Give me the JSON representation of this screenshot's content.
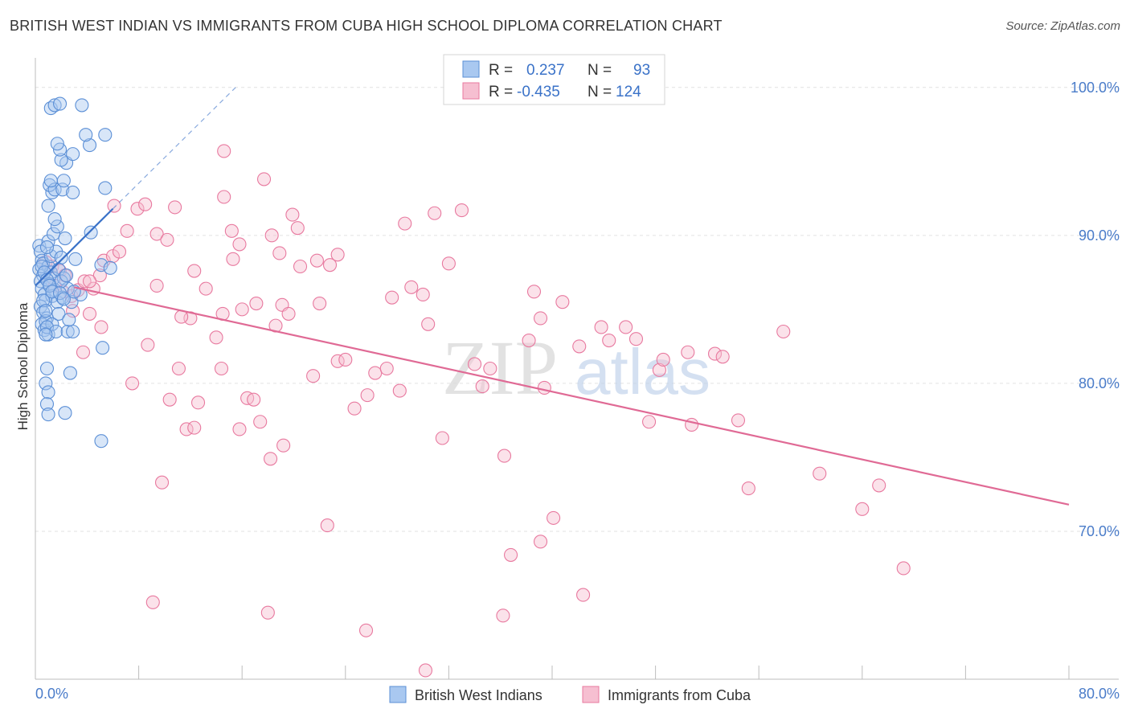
{
  "chart_data": {
    "type": "scatter",
    "title": "BRITISH WEST INDIAN VS IMMIGRANTS FROM CUBA HIGH SCHOOL DIPLOMA CORRELATION CHART",
    "source": "Source: ZipAtlas.com",
    "ylabel": "High School Diploma",
    "xlabel": "",
    "xlim": [
      0,
      80
    ],
    "ylim": [
      60,
      102
    ],
    "x_tick_labels": [
      {
        "value": 0,
        "label": "0.0%"
      },
      {
        "value": 80,
        "label": "80.0%"
      }
    ],
    "y_tick_labels": [
      {
        "value": 100,
        "label": "100.0%"
      },
      {
        "value": 90,
        "label": "90.0%"
      },
      {
        "value": 80,
        "label": "80.0%"
      },
      {
        "value": 70,
        "label": "70.0%"
      }
    ],
    "watermark": {
      "zip": "ZIP",
      "atlas": "atlas"
    },
    "legend": {
      "rows": [
        {
          "r_label": "R =",
          "r_value": "0.237",
          "n_label": "N =",
          "n_value": "93"
        },
        {
          "r_label": "R =",
          "r_value": "-0.435",
          "n_label": "N =",
          "n_value": "124"
        }
      ]
    },
    "colors": {
      "blue_fill": "#a9c8f0",
      "blue_stroke": "#5b8fd6",
      "blue_line": "#3a72c8",
      "pink_fill": "#f6bfd1",
      "pink_stroke": "#e8799f",
      "pink_line": "#e06a95",
      "grid": "#e2e2e2",
      "tick_text": "#4a7cc9"
    },
    "series": [
      {
        "name": "British West Indians",
        "r": 0.237,
        "n": 93,
        "trend": {
          "x1": 0.0,
          "y1": 86.6,
          "x2": 6.0,
          "y2": 91.8,
          "dash_x2": 15.5,
          "dash_y2": 100.0
        },
        "points": [
          [
            0.3,
            89.3
          ],
          [
            0.4,
            88.9
          ],
          [
            0.5,
            88.3
          ],
          [
            0.3,
            87.7
          ],
          [
            0.6,
            87.3
          ],
          [
            0.4,
            86.9
          ],
          [
            0.5,
            86.4
          ],
          [
            0.7,
            86.0
          ],
          [
            0.8,
            85.6
          ],
          [
            0.4,
            85.2
          ],
          [
            0.6,
            84.8
          ],
          [
            0.9,
            84.4
          ],
          [
            0.5,
            84.0
          ],
          [
            0.7,
            83.6
          ],
          [
            1.0,
            83.3
          ],
          [
            0.6,
            88.1
          ],
          [
            1.0,
            87.9
          ],
          [
            1.2,
            87.5
          ],
          [
            1.4,
            87.1
          ],
          [
            1.1,
            86.7
          ],
          [
            1.5,
            86.3
          ],
          [
            1.3,
            85.9
          ],
          [
            1.7,
            85.5
          ],
          [
            1.2,
            88.6
          ],
          [
            1.6,
            88.9
          ],
          [
            2.0,
            88.5
          ],
          [
            1.8,
            87.7
          ],
          [
            2.2,
            87.1
          ],
          [
            2.5,
            86.4
          ],
          [
            2.1,
            85.8
          ],
          [
            2.8,
            85.5
          ],
          [
            3.1,
            88.4
          ],
          [
            1.0,
            89.6
          ],
          [
            1.4,
            90.1
          ],
          [
            2.3,
            89.8
          ],
          [
            1.7,
            90.6
          ],
          [
            1.5,
            91.1
          ],
          [
            1.0,
            92.0
          ],
          [
            1.3,
            92.9
          ],
          [
            1.1,
            93.4
          ],
          [
            1.5,
            93.1
          ],
          [
            2.1,
            93.1
          ],
          [
            2.9,
            92.9
          ],
          [
            1.2,
            93.7
          ],
          [
            2.2,
            93.7
          ],
          [
            2.4,
            94.9
          ],
          [
            2.0,
            95.1
          ],
          [
            2.9,
            95.5
          ],
          [
            1.9,
            95.8
          ],
          [
            1.7,
            96.2
          ],
          [
            4.2,
            96.1
          ],
          [
            3.9,
            96.8
          ],
          [
            5.4,
            96.8
          ],
          [
            1.2,
            98.6
          ],
          [
            1.5,
            98.8
          ],
          [
            1.9,
            98.9
          ],
          [
            3.6,
            98.8
          ],
          [
            5.4,
            93.2
          ],
          [
            4.3,
            90.2
          ],
          [
            5.1,
            88.0
          ],
          [
            5.8,
            87.8
          ],
          [
            3.5,
            86.0
          ],
          [
            0.8,
            84.2
          ],
          [
            1.3,
            84.0
          ],
          [
            0.9,
            83.8
          ],
          [
            1.6,
            83.5
          ],
          [
            2.5,
            83.5
          ],
          [
            2.9,
            83.5
          ],
          [
            1.8,
            84.7
          ],
          [
            0.8,
            83.3
          ],
          [
            0.9,
            81.0
          ],
          [
            0.8,
            80.0
          ],
          [
            1.0,
            79.4
          ],
          [
            0.9,
            78.6
          ],
          [
            1.0,
            77.9
          ],
          [
            2.3,
            78.0
          ],
          [
            2.7,
            80.7
          ],
          [
            5.2,
            82.4
          ],
          [
            5.1,
            76.1
          ],
          [
            0.5,
            87.9
          ],
          [
            0.7,
            87.5
          ],
          [
            0.9,
            87.0
          ],
          [
            1.1,
            86.6
          ],
          [
            1.3,
            86.2
          ],
          [
            0.6,
            85.6
          ],
          [
            0.8,
            84.9
          ],
          [
            2.6,
            84.3
          ],
          [
            2.0,
            86.9
          ],
          [
            2.4,
            87.3
          ],
          [
            1.9,
            86.1
          ],
          [
            2.2,
            85.7
          ],
          [
            3.0,
            86.2
          ],
          [
            0.9,
            89.2
          ]
        ]
      },
      {
        "name": "Immigrants from Cuba",
        "r": -0.435,
        "n": 124,
        "trend": {
          "x1": 3.0,
          "y1": 86.5,
          "x2": 80.0,
          "y2": 71.8
        },
        "points": [
          [
            0.8,
            88.2
          ],
          [
            1.3,
            87.9
          ],
          [
            1.9,
            87.6
          ],
          [
            2.3,
            87.3
          ],
          [
            0.9,
            87.0
          ],
          [
            1.5,
            86.6
          ],
          [
            2.1,
            86.2
          ],
          [
            2.8,
            85.9
          ],
          [
            3.3,
            86.3
          ],
          [
            3.8,
            86.9
          ],
          [
            4.5,
            86.4
          ],
          [
            5.0,
            87.3
          ],
          [
            5.3,
            88.3
          ],
          [
            6.0,
            88.6
          ],
          [
            6.5,
            88.9
          ],
          [
            7.1,
            90.3
          ],
          [
            6.1,
            92.0
          ],
          [
            7.9,
            91.8
          ],
          [
            8.5,
            92.1
          ],
          [
            9.4,
            90.1
          ],
          [
            10.2,
            89.7
          ],
          [
            10.8,
            91.9
          ],
          [
            12.3,
            87.6
          ],
          [
            13.2,
            86.4
          ],
          [
            14.5,
            84.7
          ],
          [
            15.2,
            90.3
          ],
          [
            15.8,
            89.4
          ],
          [
            15.3,
            88.4
          ],
          [
            14.0,
            83.1
          ],
          [
            12.0,
            84.4
          ],
          [
            11.1,
            81.0
          ],
          [
            11.3,
            84.5
          ],
          [
            9.4,
            86.6
          ],
          [
            8.7,
            82.6
          ],
          [
            7.5,
            80.0
          ],
          [
            4.2,
            84.7
          ],
          [
            5.1,
            83.8
          ],
          [
            3.7,
            82.1
          ],
          [
            4.2,
            86.9
          ],
          [
            10.4,
            78.9
          ],
          [
            12.6,
            78.7
          ],
          [
            11.7,
            76.9
          ],
          [
            12.3,
            77.0
          ],
          [
            14.4,
            81.0
          ],
          [
            15.8,
            76.9
          ],
          [
            16.0,
            85.0
          ],
          [
            17.1,
            85.4
          ],
          [
            16.4,
            79.0
          ],
          [
            16.9,
            78.9
          ],
          [
            17.4,
            77.4
          ],
          [
            18.2,
            74.9
          ],
          [
            19.2,
            75.8
          ],
          [
            18.6,
            83.9
          ],
          [
            19.1,
            85.3
          ],
          [
            19.6,
            84.7
          ],
          [
            18.3,
            90.0
          ],
          [
            18.9,
            88.8
          ],
          [
            19.9,
            91.4
          ],
          [
            20.3,
            90.5
          ],
          [
            20.5,
            87.9
          ],
          [
            21.8,
            88.3
          ],
          [
            22.8,
            88.0
          ],
          [
            23.4,
            88.7
          ],
          [
            22.0,
            85.4
          ],
          [
            21.5,
            80.5
          ],
          [
            23.4,
            81.5
          ],
          [
            24.0,
            81.6
          ],
          [
            24.7,
            78.3
          ],
          [
            25.7,
            79.2
          ],
          [
            26.3,
            80.7
          ],
          [
            27.2,
            81.0
          ],
          [
            28.2,
            79.5
          ],
          [
            27.6,
            85.8
          ],
          [
            29.1,
            86.5
          ],
          [
            30.0,
            86.0
          ],
          [
            30.4,
            84.0
          ],
          [
            31.5,
            76.3
          ],
          [
            30.9,
            91.5
          ],
          [
            32.0,
            88.1
          ],
          [
            28.6,
            90.8
          ],
          [
            33.0,
            91.7
          ],
          [
            34.0,
            81.3
          ],
          [
            34.6,
            79.8
          ],
          [
            35.2,
            81.0
          ],
          [
            36.3,
            75.1
          ],
          [
            38.2,
            82.9
          ],
          [
            38.6,
            86.2
          ],
          [
            39.1,
            84.4
          ],
          [
            39.4,
            79.7
          ],
          [
            40.8,
            85.5
          ],
          [
            42.1,
            82.5
          ],
          [
            43.8,
            83.8
          ],
          [
            44.4,
            82.9
          ],
          [
            45.7,
            83.8
          ],
          [
            46.5,
            83.0
          ],
          [
            47.5,
            77.4
          ],
          [
            48.3,
            80.9
          ],
          [
            48.6,
            81.6
          ],
          [
            50.5,
            82.1
          ],
          [
            50.8,
            77.2
          ],
          [
            52.6,
            82.0
          ],
          [
            53.2,
            81.8
          ],
          [
            54.4,
            77.5
          ],
          [
            55.2,
            72.9
          ],
          [
            57.9,
            83.5
          ],
          [
            60.7,
            73.9
          ],
          [
            64.0,
            71.5
          ],
          [
            65.3,
            73.1
          ],
          [
            67.2,
            67.5
          ],
          [
            40.1,
            70.9
          ],
          [
            39.1,
            69.3
          ],
          [
            36.8,
            68.4
          ],
          [
            42.4,
            65.7
          ],
          [
            36.2,
            64.3
          ],
          [
            22.6,
            70.4
          ],
          [
            25.6,
            63.3
          ],
          [
            9.1,
            65.2
          ],
          [
            18.0,
            64.5
          ],
          [
            30.2,
            60.6
          ],
          [
            9.8,
            73.3
          ],
          [
            14.6,
            95.7
          ],
          [
            17.7,
            93.8
          ],
          [
            2.9,
            84.9
          ],
          [
            14.6,
            92.6
          ]
        ]
      }
    ],
    "bottom_legend": [
      "British West Indians",
      "Immigrants from Cuba"
    ]
  }
}
